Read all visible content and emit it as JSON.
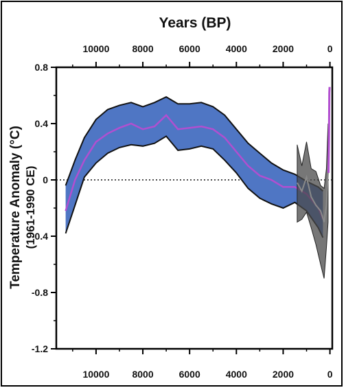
{
  "chart_data": {
    "type": "line",
    "title": "",
    "xlabel": "Years (BP)",
    "ylabel": "Temperature Anomaly (°C)",
    "ylabel_sub": "(1961-1990 CE)",
    "x_axis_position": "top and bottom",
    "x_reversed": true,
    "xlim": [
      11700,
      -100
    ],
    "ylim": [
      -1.2,
      0.8
    ],
    "x_ticks": [
      10000,
      8000,
      6000,
      4000,
      2000,
      0
    ],
    "y_ticks": [
      0.8,
      0.4,
      0,
      -0.4,
      -0.8,
      -1.2
    ],
    "y_tick_labels": [
      "0.8",
      "0.4",
      "0",
      "-0.4",
      "-0.8",
      "-1.2"
    ],
    "zero_reference_line": "dotted",
    "colors": {
      "band_fill": "#4f76c4",
      "band_edge": "#111111",
      "holocene_mean": "#b24fd0",
      "recent_mean": "#8a8a8a",
      "recent_band": "#4a4a4a"
    },
    "series": [
      {
        "role": "Holocene stack mean",
        "x": [
          11300,
          10900,
          10500,
          10000,
          9500,
          9000,
          8500,
          8000,
          7500,
          7000,
          6500,
          6000,
          5500,
          5000,
          4500,
          4000,
          3500,
          3000,
          2500,
          2000,
          1500,
          1000,
          500,
          300
        ],
        "y": [
          -0.22,
          0.0,
          0.14,
          0.27,
          0.33,
          0.37,
          0.4,
          0.36,
          0.38,
          0.46,
          0.36,
          0.37,
          0.38,
          0.36,
          0.3,
          0.2,
          0.1,
          0.03,
          0.0,
          -0.05,
          -0.05,
          -0.1,
          -0.2,
          -0.28
        ],
        "upper": [
          -0.04,
          0.14,
          0.3,
          0.43,
          0.5,
          0.53,
          0.55,
          0.52,
          0.55,
          0.59,
          0.54,
          0.54,
          0.55,
          0.52,
          0.46,
          0.36,
          0.26,
          0.19,
          0.12,
          0.07,
          0.04,
          -0.01,
          -0.05,
          -0.08
        ],
        "lower": [
          -0.38,
          -0.18,
          0.02,
          0.12,
          0.19,
          0.23,
          0.25,
          0.24,
          0.26,
          0.31,
          0.21,
          0.22,
          0.24,
          0.22,
          0.14,
          0.05,
          -0.06,
          -0.13,
          -0.17,
          -0.2,
          -0.16,
          -0.22,
          -0.34,
          -0.41
        ]
      },
      {
        "role": "recent proxy mean",
        "x": [
          1400,
          1200,
          1000,
          800,
          600,
          400,
          250,
          150,
          80
        ],
        "y": [
          -0.02,
          -0.08,
          0.02,
          -0.12,
          -0.18,
          -0.22,
          -0.3,
          -0.18,
          0.05
        ],
        "upper": [
          0.25,
          0.1,
          0.27,
          0.08,
          0.06,
          -0.04,
          -0.06,
          0.08,
          0.4
        ],
        "lower": [
          -0.3,
          -0.28,
          -0.23,
          -0.34,
          -0.46,
          -0.6,
          -0.7,
          -0.48,
          -0.3
        ]
      },
      {
        "role": "instrumental spike",
        "x": [
          60,
          40,
          25,
          15
        ],
        "y": [
          0.05,
          0.3,
          0.62,
          0.66
        ]
      }
    ]
  }
}
